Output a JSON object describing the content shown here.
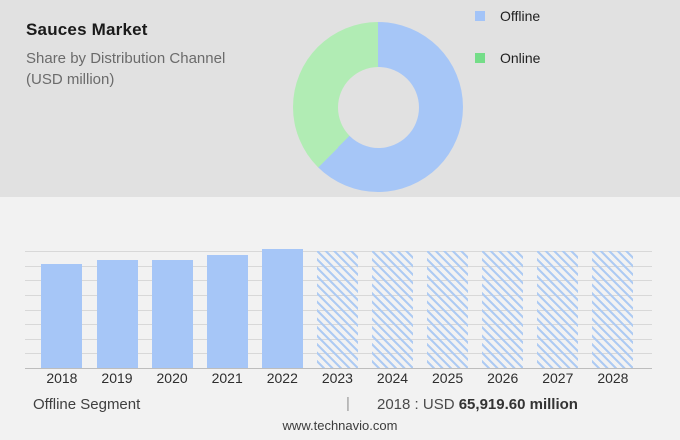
{
  "header": {
    "title": "Sauces Market",
    "subtitle_line1": "Share by Distribution Channel",
    "subtitle_line2": "(USD million)"
  },
  "legend": {
    "items": [
      {
        "label": "Offline",
        "color": "#a3c4f8"
      },
      {
        "label": "Online",
        "color": "#74dd88"
      }
    ]
  },
  "chart_data": [
    {
      "type": "pie",
      "subtype": "donut",
      "labels": [
        "Offline",
        "Online"
      ],
      "values_pct": [
        62.4,
        37.6
      ],
      "colors": [
        "#a6c6f7",
        "#b1ecb4"
      ],
      "legend_position": "right",
      "start_angle_deg": 0,
      "direction": "clockwise"
    },
    {
      "type": "bar",
      "categories": [
        2018,
        2019,
        2020,
        2021,
        2022,
        2023,
        2024,
        2025,
        2026,
        2027,
        2028
      ],
      "height_pct_of_plot": [
        88.9,
        92.7,
        91.9,
        96.2,
        101.7,
        100,
        100,
        100,
        100,
        100,
        100
      ],
      "forecast_years": [
        2023,
        2024,
        2025,
        2026,
        2027,
        2028
      ],
      "labeled_value": {
        "year": 2018,
        "value": 65919.6,
        "unit": "USD million"
      },
      "bar_color": "#a6c6f7",
      "hatch_color": "#aecbf3",
      "grid": true,
      "gridline_count": 9,
      "y_axis_labels_visible": false
    }
  ],
  "footer": {
    "segment_label": "Offline Segment",
    "separator": "|",
    "value_prefix": "2018 : USD",
    "value_bold": "65,919.60 million",
    "website": "www.technavio.com"
  }
}
